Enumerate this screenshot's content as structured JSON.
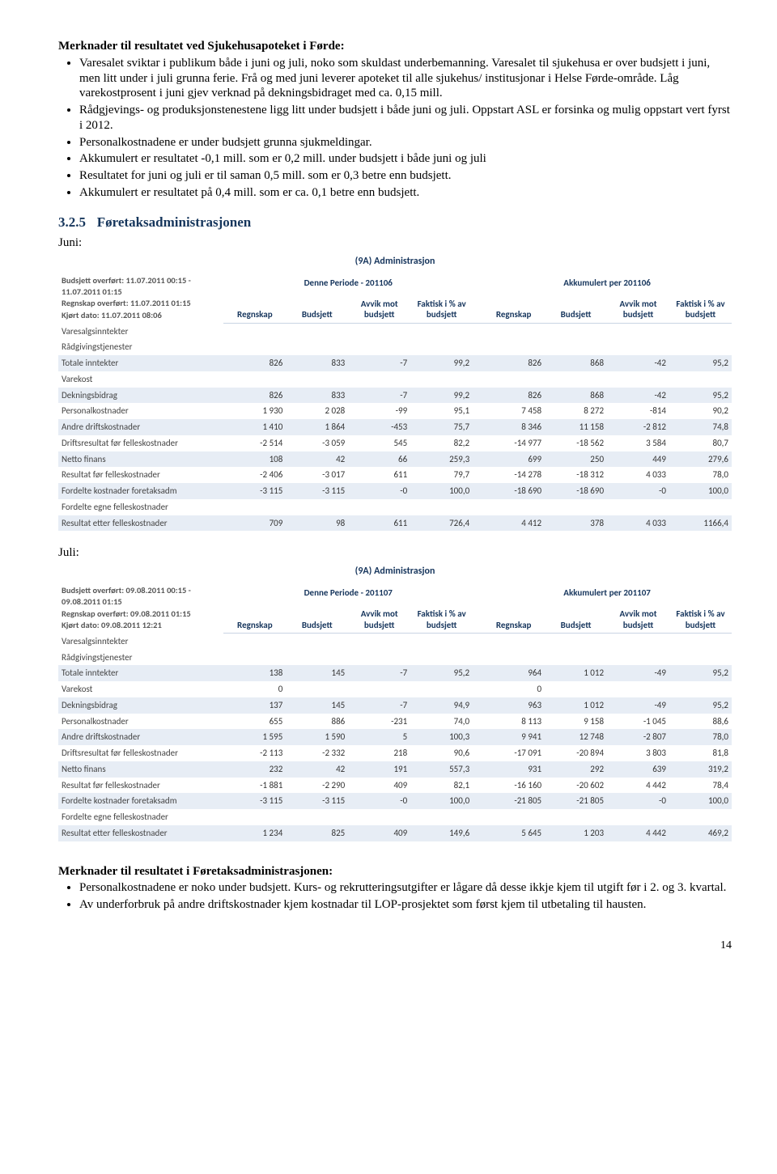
{
  "header": {
    "title": "Merknader til resultatet ved Sjukehusapoteket i Førde:"
  },
  "bullets_top": [
    "Varesalet sviktar i publikum både i juni og juli, noko som skuldast underbemanning. Varesalet til sjukehusa er over budsjett i juni, men litt under i juli grunna ferie. Frå og med juni leverer apoteket til alle sjukehus/ institusjonar i Helse Førde-område. Låg varekostprosent i juni gjev verknad på dekningsbidraget med ca. 0,15 mill.",
    "Rådgjevings- og produksjonstenestene ligg litt under budsjett i både juni og juli. Oppstart ASL er forsinka og mulig oppstart vert fyrst i 2012.",
    "Personalkostnadene er under budsjett grunna sjukmeldingar.",
    "Akkumulert er resultatet -0,1 mill. som er 0,2 mill. under budsjett i både juni og juli",
    "Resultatet for juni og juli er til saman 0,5 mill. som er 0,3 betre enn budsjett.",
    "Akkumulert er resultatet på 0,4 mill. som er ca. 0,1 betre enn budsjett."
  ],
  "section": {
    "num": "3.2.5",
    "title": "Føretaksadministrasjonen"
  },
  "labels": {
    "juni": "Juni:",
    "juli": "Juli:"
  },
  "columns": {
    "regnskap": "Regnskap",
    "budsjett": "Budsjett",
    "avvik": "Avvik mot budsjett",
    "faktisk": "Faktisk i % av budsjett",
    "faktisk_short": "Faktisk i % av budsjett"
  },
  "row_labels": [
    "Varesalgsinntekter",
    "Rådgivingstjenester",
    "Totale inntekter",
    "Varekost",
    "Dekningsbidrag",
    "Personalkostnader",
    "Andre driftskostnader",
    "Driftsresultat før felleskostnader",
    "Netto finans",
    "Resultat før felleskostnader",
    "Fordelte kostnader foretaksadm",
    "Fordelte egne felleskostnader",
    "Resultat etter felleskostnader"
  ],
  "table_juni": {
    "title": "(9A) Administrasjon",
    "period_label": "Denne Periode - 201106",
    "accum_label": "Akkumulert per 201106",
    "meta": [
      "Budsjett overført: 11.07.2011 00:15 - 11.07.2011 01:15",
      "Regnskap overført: 11.07.2011 01:15",
      "Kjørt dato: 11.07.2011 08:06"
    ],
    "rows": [
      [
        "",
        "",
        "",
        "",
        "",
        "",
        "",
        ""
      ],
      [
        "",
        "",
        "",
        "",
        "",
        "",
        "",
        ""
      ],
      [
        "826",
        "833",
        "-7",
        "99,2",
        "826",
        "868",
        "-42",
        "95,2"
      ],
      [
        "",
        "",
        "",
        "",
        "",
        "",
        "",
        ""
      ],
      [
        "826",
        "833",
        "-7",
        "99,2",
        "826",
        "868",
        "-42",
        "95,2"
      ],
      [
        "1 930",
        "2 028",
        "-99",
        "95,1",
        "7 458",
        "8 272",
        "-814",
        "90,2"
      ],
      [
        "1 410",
        "1 864",
        "-453",
        "75,7",
        "8 346",
        "11 158",
        "-2 812",
        "74,8"
      ],
      [
        "-2 514",
        "-3 059",
        "545",
        "82,2",
        "-14 977",
        "-18 562",
        "3 584",
        "80,7"
      ],
      [
        "108",
        "42",
        "66",
        "259,3",
        "699",
        "250",
        "449",
        "279,6"
      ],
      [
        "-2 406",
        "-3 017",
        "611",
        "79,7",
        "-14 278",
        "-18 312",
        "4 033",
        "78,0"
      ],
      [
        "-3 115",
        "-3 115",
        "-0",
        "100,0",
        "-18 690",
        "-18 690",
        "-0",
        "100,0"
      ],
      [
        "",
        "",
        "",
        "",
        "",
        "",
        "",
        ""
      ],
      [
        "709",
        "98",
        "611",
        "726,4",
        "4 412",
        "378",
        "4 033",
        "1166,4"
      ]
    ],
    "stripes": [
      2,
      4,
      6,
      8,
      10,
      12
    ]
  },
  "table_juli": {
    "title": "(9A) Administrasjon",
    "period_label": "Denne Periode - 201107",
    "accum_label": "Akkumulert per 201107",
    "meta": [
      "Budsjett overført: 09.08.2011 00:15 - 09.08.2011 01:15",
      "Regnskap overført: 09.08.2011 01:15",
      "Kjørt dato: 09.08.2011 12:21"
    ],
    "rows": [
      [
        "",
        "",
        "",
        "",
        "",
        "",
        "",
        ""
      ],
      [
        "",
        "",
        "",
        "",
        "",
        "",
        "",
        ""
      ],
      [
        "138",
        "145",
        "-7",
        "95,2",
        "964",
        "1 012",
        "-49",
        "95,2"
      ],
      [
        "0",
        "",
        "",
        "",
        "0",
        "",
        "",
        ""
      ],
      [
        "137",
        "145",
        "-7",
        "94,9",
        "963",
        "1 012",
        "-49",
        "95,2"
      ],
      [
        "655",
        "886",
        "-231",
        "74,0",
        "8 113",
        "9 158",
        "-1 045",
        "88,6"
      ],
      [
        "1 595",
        "1 590",
        "5",
        "100,3",
        "9 941",
        "12 748",
        "-2 807",
        "78,0"
      ],
      [
        "-2 113",
        "-2 332",
        "218",
        "90,6",
        "-17 091",
        "-20 894",
        "3 803",
        "81,8"
      ],
      [
        "232",
        "42",
        "191",
        "557,3",
        "931",
        "292",
        "639",
        "319,2"
      ],
      [
        "-1 881",
        "-2 290",
        "409",
        "82,1",
        "-16 160",
        "-20 602",
        "4 442",
        "78,4"
      ],
      [
        "-3 115",
        "-3 115",
        "-0",
        "100,0",
        "-21 805",
        "-21 805",
        "-0",
        "100,0"
      ],
      [
        "",
        "",
        "",
        "",
        "",
        "",
        "",
        ""
      ],
      [
        "1 234",
        "825",
        "409",
        "149,6",
        "5 645",
        "1 203",
        "4 442",
        "469,2"
      ]
    ],
    "stripes": [
      2,
      4,
      6,
      8,
      10,
      12
    ]
  },
  "header2": {
    "title": "Merknader til resultatet i Føretaksadministrasjonen:"
  },
  "bullets_bottom": [
    "Personalkostnadene er noko under budsjett. Kurs- og rekrutteringsutgifter er lågare då desse ikkje kjem til utgift før i 2. og 3. kvartal.",
    "Av underforbruk på andre driftskostnader kjem kostnadar til LOP-prosjektet som først kjem til utbetaling til hausten."
  ],
  "page_number": "14",
  "style": {
    "heading_color": "#16365c",
    "stripe_color": "#e7edf5"
  }
}
